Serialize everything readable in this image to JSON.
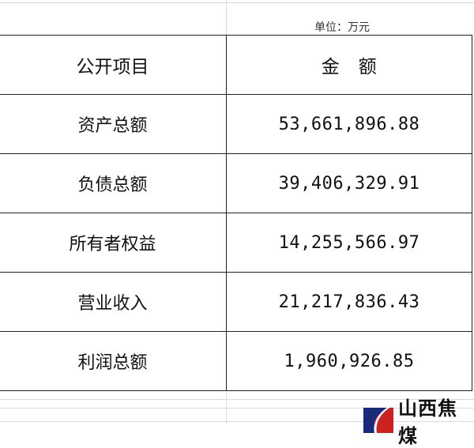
{
  "unit_label": "单位：万元",
  "table": {
    "headers": [
      "公开项目",
      "金　额"
    ],
    "rows": [
      {
        "item": "资产总额",
        "amount": "53,661,896.88"
      },
      {
        "item": "负债总额",
        "amount": "39,406,329.91"
      },
      {
        "item": "所有者权益",
        "amount": "14,255,566.97"
      },
      {
        "item": "营业收入",
        "amount": "21,217,836.43"
      },
      {
        "item": "利润总额",
        "amount": "1,960,926.85"
      }
    ]
  },
  "logo": {
    "text": "山西焦煤",
    "colors": {
      "blue": "#1a2a7a",
      "red": "#cc2222"
    }
  }
}
